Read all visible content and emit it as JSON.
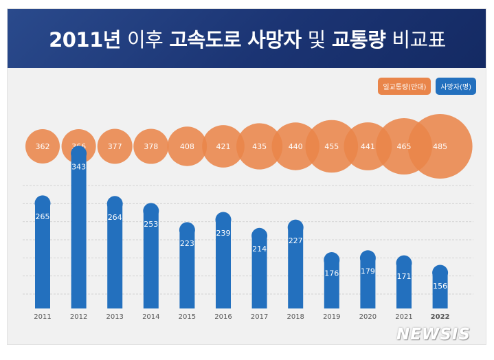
{
  "title": {
    "parts": [
      {
        "text": "2011년",
        "bold": true
      },
      {
        "text": "이후",
        "bold": false
      },
      {
        "text": "고속도로",
        "bold": true
      },
      {
        "text": "사망자",
        "bold": true
      },
      {
        "text": "및",
        "bold": false
      },
      {
        "text": "교통량",
        "bold": true
      },
      {
        "text": "비교표",
        "bold": false
      }
    ]
  },
  "legend": {
    "traffic_label": "일교통량(만대)",
    "deaths_label": "사망자(명)"
  },
  "colors": {
    "banner": "#1b3473",
    "traffic": "#e9854a",
    "deaths": "#2370be",
    "background": "#f1f1f1",
    "axis_text": "#555555"
  },
  "watermark": "NEWSIS",
  "chart_data": [
    {
      "type": "bubble",
      "x": [
        "2011",
        "2012",
        "2013",
        "2014",
        "2015",
        "2016",
        "2017",
        "2018",
        "2019",
        "2020",
        "2021",
        "2022"
      ],
      "series": [
        {
          "name": "일교통량(만대)",
          "values": [
            362,
            366,
            377,
            378,
            408,
            421,
            435,
            440,
            455,
            441,
            465,
            485
          ]
        }
      ]
    },
    {
      "type": "bar",
      "categories": [
        "2011",
        "2012",
        "2013",
        "2014",
        "2015",
        "2016",
        "2017",
        "2018",
        "2019",
        "2020",
        "2021",
        "2022"
      ],
      "series": [
        {
          "name": "사망자(명)",
          "values": [
            265,
            343,
            264,
            253,
            223,
            239,
            214,
            227,
            176,
            179,
            171,
            156
          ]
        }
      ],
      "grid": true
    }
  ]
}
